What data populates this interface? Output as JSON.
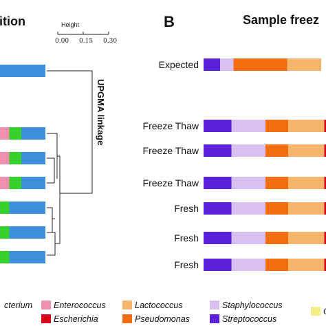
{
  "panelA": {
    "title_fragment": "ition",
    "linkage_label": "UPGMA linkage",
    "scale": {
      "title": "Height",
      "ticks": [
        "0.00",
        "0.15",
        "0.30"
      ]
    }
  },
  "panelB": {
    "letter": "B",
    "title_fragment": "Sample freez"
  },
  "legend": [
    {
      "name": "cterium",
      "color": "#d7e87a"
    },
    {
      "name": "Enterococcus",
      "color": "#f08fb0"
    },
    {
      "name": "Escherichia",
      "color": "#d9001b"
    },
    {
      "name": "Lactococcus",
      "color": "#f7b56c"
    },
    {
      "name": "Pseudomonas",
      "color": "#f26e10"
    },
    {
      "name": "Staphylococcus",
      "color": "#d7bff0"
    },
    {
      "name": "Streptococcus",
      "color": "#5a21d9"
    },
    {
      "name": "O",
      "color": "#f5ec8a"
    }
  ],
  "chart_data": [
    {
      "type": "bar",
      "orientation": "horizontal",
      "stacked": true,
      "series_order": [
        "cterium",
        "Enterococcus",
        "Green",
        "Blue"
      ],
      "colors": {
        "cterium": "#d7e87a",
        "Enterococcus": "#f08fb0",
        "Green": "#37d02a",
        "Blue": "#3d8fdb"
      },
      "rows": [
        {
          "visible_fractions": {
            "cterium": 0.05,
            "Blue": 0.95
          }
        },
        {
          "visible_fractions": {
            "Enterococcus": 0.25,
            "Green": 0.25,
            "Blue": 0.5
          }
        },
        {
          "visible_fractions": {
            "Enterococcus": 0.25,
            "Green": 0.25,
            "Blue": 0.5
          }
        },
        {
          "visible_fractions": {
            "Enterococcus": 0.25,
            "Green": 0.25,
            "Blue": 0.5
          }
        },
        {
          "visible_fractions": {
            "Green": 0.25,
            "Blue": 0.75
          }
        },
        {
          "visible_fractions": {
            "Green": 0.25,
            "Blue": 0.75
          }
        },
        {
          "visible_fractions": {
            "Green": 0.25,
            "Blue": 0.75
          }
        }
      ],
      "dendrogram": {
        "scale_label": "Height",
        "scale_ticks": [
          0.0,
          0.15,
          0.3
        ],
        "linkage": "UPGMA linkage"
      }
    },
    {
      "type": "bar",
      "orientation": "horizontal",
      "stacked": true,
      "series": [
        "Streptococcus",
        "Staphylococcus",
        "Pseudomonas",
        "Lactococcus",
        "Escherichia"
      ],
      "colors": {
        "Streptococcus": "#5a21d9",
        "Staphylococcus": "#d7bff0",
        "Pseudomonas": "#f26e10",
        "Lactococcus": "#f7b56c",
        "Escherichia": "#d9001b"
      },
      "categories": [
        "Expected",
        "Freeze Thaw",
        "Freeze Thaw",
        "Freeze Thaw",
        "Fresh",
        "Fresh",
        "Fresh"
      ],
      "rows": [
        {
          "label": "Expected",
          "values": {
            "Streptococcus": 0.16,
            "Staphylococcus": 0.13,
            "Pseudomonas": 0.52,
            "Lactococcus": 0.33,
            "Escherichia": 0.0
          }
        },
        {
          "label": "Freeze Thaw",
          "values": {
            "Streptococcus": 0.27,
            "Staphylococcus": 0.33,
            "Pseudomonas": 0.22,
            "Lactococcus": 0.35,
            "Escherichia": 0.03
          }
        },
        {
          "label": "Freeze Thaw",
          "values": {
            "Streptococcus": 0.27,
            "Staphylococcus": 0.33,
            "Pseudomonas": 0.22,
            "Lactococcus": 0.35,
            "Escherichia": 0.03
          }
        },
        {
          "label": "Freeze Thaw",
          "values": {
            "Streptococcus": 0.27,
            "Staphylococcus": 0.33,
            "Pseudomonas": 0.22,
            "Lactococcus": 0.35,
            "Escherichia": 0.03
          }
        },
        {
          "label": "Fresh",
          "values": {
            "Streptococcus": 0.27,
            "Staphylococcus": 0.33,
            "Pseudomonas": 0.22,
            "Lactococcus": 0.35,
            "Escherichia": 0.03
          }
        },
        {
          "label": "Fresh",
          "values": {
            "Streptococcus": 0.27,
            "Staphylococcus": 0.33,
            "Pseudomonas": 0.22,
            "Lactococcus": 0.35,
            "Escherichia": 0.03
          }
        },
        {
          "label": "Fresh",
          "values": {
            "Streptococcus": 0.27,
            "Staphylococcus": 0.33,
            "Pseudomonas": 0.22,
            "Lactococcus": 0.35,
            "Escherichia": 0.03
          }
        }
      ]
    }
  ]
}
